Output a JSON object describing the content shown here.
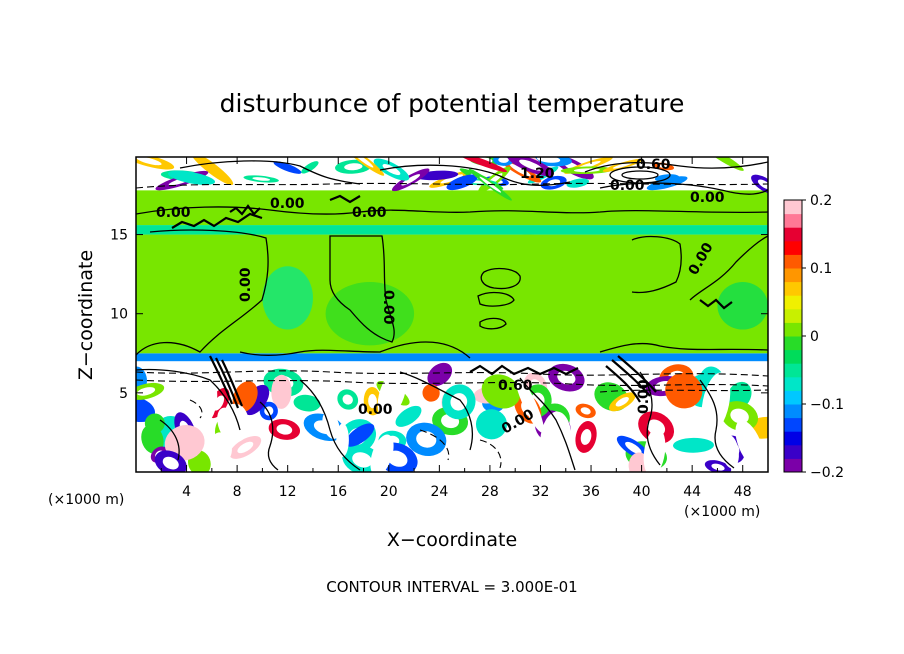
{
  "chart_data": {
    "type": "heatmap",
    "title": "disturbunce of potential temperature",
    "xlabel": "X−coordinate",
    "ylabel": "Z−coordinate",
    "x_unit_left": "(×1000 m)",
    "x_unit_right": "(×1000 m)",
    "xlim": [
      0,
      50
    ],
    "ylim": [
      0,
      19.9
    ],
    "x_ticks": [
      4,
      8,
      12,
      16,
      20,
      24,
      28,
      32,
      36,
      40,
      44,
      48
    ],
    "y_ticks": [
      5,
      10,
      15
    ],
    "colorbar": {
      "range": [
        -0.2,
        0.2
      ],
      "ticks": [
        0.2,
        0.1,
        0,
        -0.1,
        -0.2
      ],
      "tick_labels": [
        "0.2",
        "0.1",
        "0",
        "−0.1",
        "−0.2"
      ],
      "colors": [
        "#7b00a8",
        "#3a00c8",
        "#0000e6",
        "#0046ff",
        "#008cff",
        "#00c8ff",
        "#00e6c8",
        "#00e696",
        "#00dc5a",
        "#28dc28",
        "#78e600",
        "#c8f000",
        "#f0f000",
        "#ffc800",
        "#ff9600",
        "#ff5a00",
        "#ff0000",
        "#e60032",
        "#ff7896",
        "#ffc8d2"
      ]
    },
    "contour_interval": "CONTOUR INTERVAL = 3.000E-01",
    "contour_labels": [
      "0.00",
      "0.00",
      "0.00",
      "0.00",
      "0.00",
      "0.00",
      "0.00",
      "0.00",
      "0.00",
      "0.60",
      "0.60",
      "1.20",
      "0.00",
      "0.00"
    ],
    "layers": [
      {
        "z": [
          0,
          7
        ],
        "state": "turbulent mixed"
      },
      {
        "z": [
          7,
          7.5
        ],
        "value": -0.12
      },
      {
        "z": [
          7.5,
          15
        ],
        "value": 0.0
      },
      {
        "z": [
          15,
          15.6
        ],
        "value": -0.06
      },
      {
        "z": [
          15.6,
          17.8
        ],
        "value": 0.0
      },
      {
        "z": [
          17.8,
          19.9
        ],
        "state": "turbulent mixed"
      }
    ],
    "grid": false
  }
}
